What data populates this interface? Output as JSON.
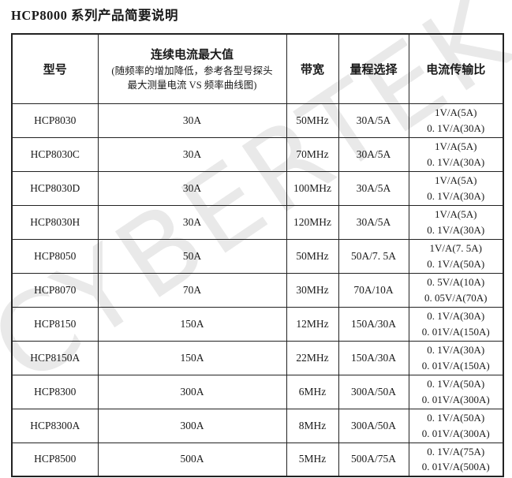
{
  "page": {
    "title": "HCP8000 系列产品简要说明",
    "watermark": "CYBERTEK"
  },
  "colors": {
    "background": "#ffffff",
    "text": "#1a1a1a",
    "border": "#222222",
    "watermark": "#e9e9e9"
  },
  "table": {
    "headers": {
      "model": "型号",
      "max_current_title": "连续电流最大值",
      "max_current_note1": "(随频率的增加降低，参考各型号探头",
      "max_current_note2": "最大测量电流 VS 频率曲线图)",
      "bandwidth": "带宽",
      "range_select": "量程选择",
      "current_ratio": "电流传输比"
    },
    "rows": [
      {
        "model": "HCP8030",
        "max_current": "30A",
        "bandwidth": "50MHz",
        "range": "30A/5A",
        "ratio1": "1V/A(5A)",
        "ratio2": "0. 1V/A(30A)"
      },
      {
        "model": "HCP8030C",
        "max_current": "30A",
        "bandwidth": "70MHz",
        "range": "30A/5A",
        "ratio1": "1V/A(5A)",
        "ratio2": "0. 1V/A(30A)"
      },
      {
        "model": "HCP8030D",
        "max_current": "30A",
        "bandwidth": "100MHz",
        "range": "30A/5A",
        "ratio1": "1V/A(5A)",
        "ratio2": "0. 1V/A(30A)"
      },
      {
        "model": "HCP8030H",
        "max_current": "30A",
        "bandwidth": "120MHz",
        "range": "30A/5A",
        "ratio1": "1V/A(5A)",
        "ratio2": "0. 1V/A(30A)"
      },
      {
        "model": "HCP8050",
        "max_current": "50A",
        "bandwidth": "50MHz",
        "range": "50A/7. 5A",
        "ratio1": "1V/A(7. 5A)",
        "ratio2": "0. 1V/A(50A)"
      },
      {
        "model": "HCP8070",
        "max_current": "70A",
        "bandwidth": "30MHz",
        "range": "70A/10A",
        "ratio1": "0. 5V/A(10A)",
        "ratio2": "0. 05V/A(70A)"
      },
      {
        "model": "HCP8150",
        "max_current": "150A",
        "bandwidth": "12MHz",
        "range": "150A/30A",
        "ratio1": "0. 1V/A(30A)",
        "ratio2": "0. 01V/A(150A)"
      },
      {
        "model": "HCP8150A",
        "max_current": "150A",
        "bandwidth": "22MHz",
        "range": "150A/30A",
        "ratio1": "0. 1V/A(30A)",
        "ratio2": "0. 01V/A(150A)"
      },
      {
        "model": "HCP8300",
        "max_current": "300A",
        "bandwidth": "6MHz",
        "range": "300A/50A",
        "ratio1": "0. 1V/A(50A)",
        "ratio2": "0. 01V/A(300A)"
      },
      {
        "model": "HCP8300A",
        "max_current": "300A",
        "bandwidth": "8MHz",
        "range": "300A/50A",
        "ratio1": "0. 1V/A(50A)",
        "ratio2": "0. 01V/A(300A)"
      },
      {
        "model": "HCP8500",
        "max_current": "500A",
        "bandwidth": "5MHz",
        "range": "500A/75A",
        "ratio1": "0. 1V/A(75A)",
        "ratio2": "0. 01V/A(500A)"
      }
    ]
  }
}
